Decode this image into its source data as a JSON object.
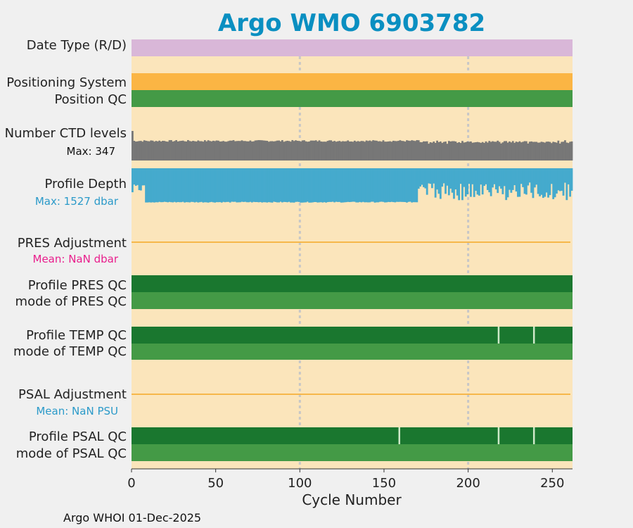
{
  "chart_data": {
    "type": "bar",
    "title": "Argo WMO 6903782",
    "xlabel": "Cycle Number",
    "xlim": [
      0,
      262
    ],
    "xticks": [
      0,
      50,
      100,
      150,
      200,
      250
    ],
    "vertical_gridlines": [
      100,
      200
    ],
    "footer": "Argo WHOI 01-Dec-2025",
    "colors": {
      "title": "#0a8fc1",
      "panel_bg": "#fbe5bb",
      "date_type": "#d9b7d8",
      "positioning": "#fbb544",
      "qc_good": "#1a772f",
      "qc_mode": "#449a46",
      "ctd": "#777777",
      "depth": "#45aacd",
      "mean_pres": "#e91e8c",
      "mean_psal": "#2b9ac9",
      "zero_line": "#f6b74a",
      "grid": "#c7c7c7",
      "qc_break": "#cfe9c9"
    },
    "rows": {
      "date_type": {
        "label": "Date Type (R/D)"
      },
      "positioning": {
        "label": "Positioning System"
      },
      "position_qc": {
        "label": "Position QC"
      },
      "ctd_levels": {
        "label": "Number CTD levels",
        "max_text": "Max: 347",
        "max": 347,
        "typical_range": [
          220,
          240
        ],
        "first_cycle_value": 347
      },
      "profile_depth": {
        "label": "Profile Depth",
        "max_text": "Max: 1527 dbar",
        "max_dbar": 1527,
        "typical_dbar": 1490,
        "reduced_depth_cycles_from": 170
      },
      "pres_adjustment": {
        "label": "PRES Adjustment",
        "mean_text": "Mean:  NaN dbar",
        "mean": "NaN"
      },
      "profile_pres_qc": {
        "label": "Profile PRES QC",
        "breaks": []
      },
      "mode_pres_qc": {
        "label": "mode of PRES QC"
      },
      "profile_temp_qc": {
        "label": "Profile TEMP QC",
        "breaks": [
          218,
          239
        ]
      },
      "mode_temp_qc": {
        "label": "mode of TEMP QC"
      },
      "psal_adjustment": {
        "label": "PSAL Adjustment",
        "mean_text": "Mean:  NaN PSU",
        "mean": "NaN"
      },
      "profile_psal_qc": {
        "label": "Profile PSAL QC",
        "breaks": [
          159,
          218,
          239
        ]
      },
      "mode_psal_qc": {
        "label": "mode of PSAL QC"
      }
    }
  }
}
